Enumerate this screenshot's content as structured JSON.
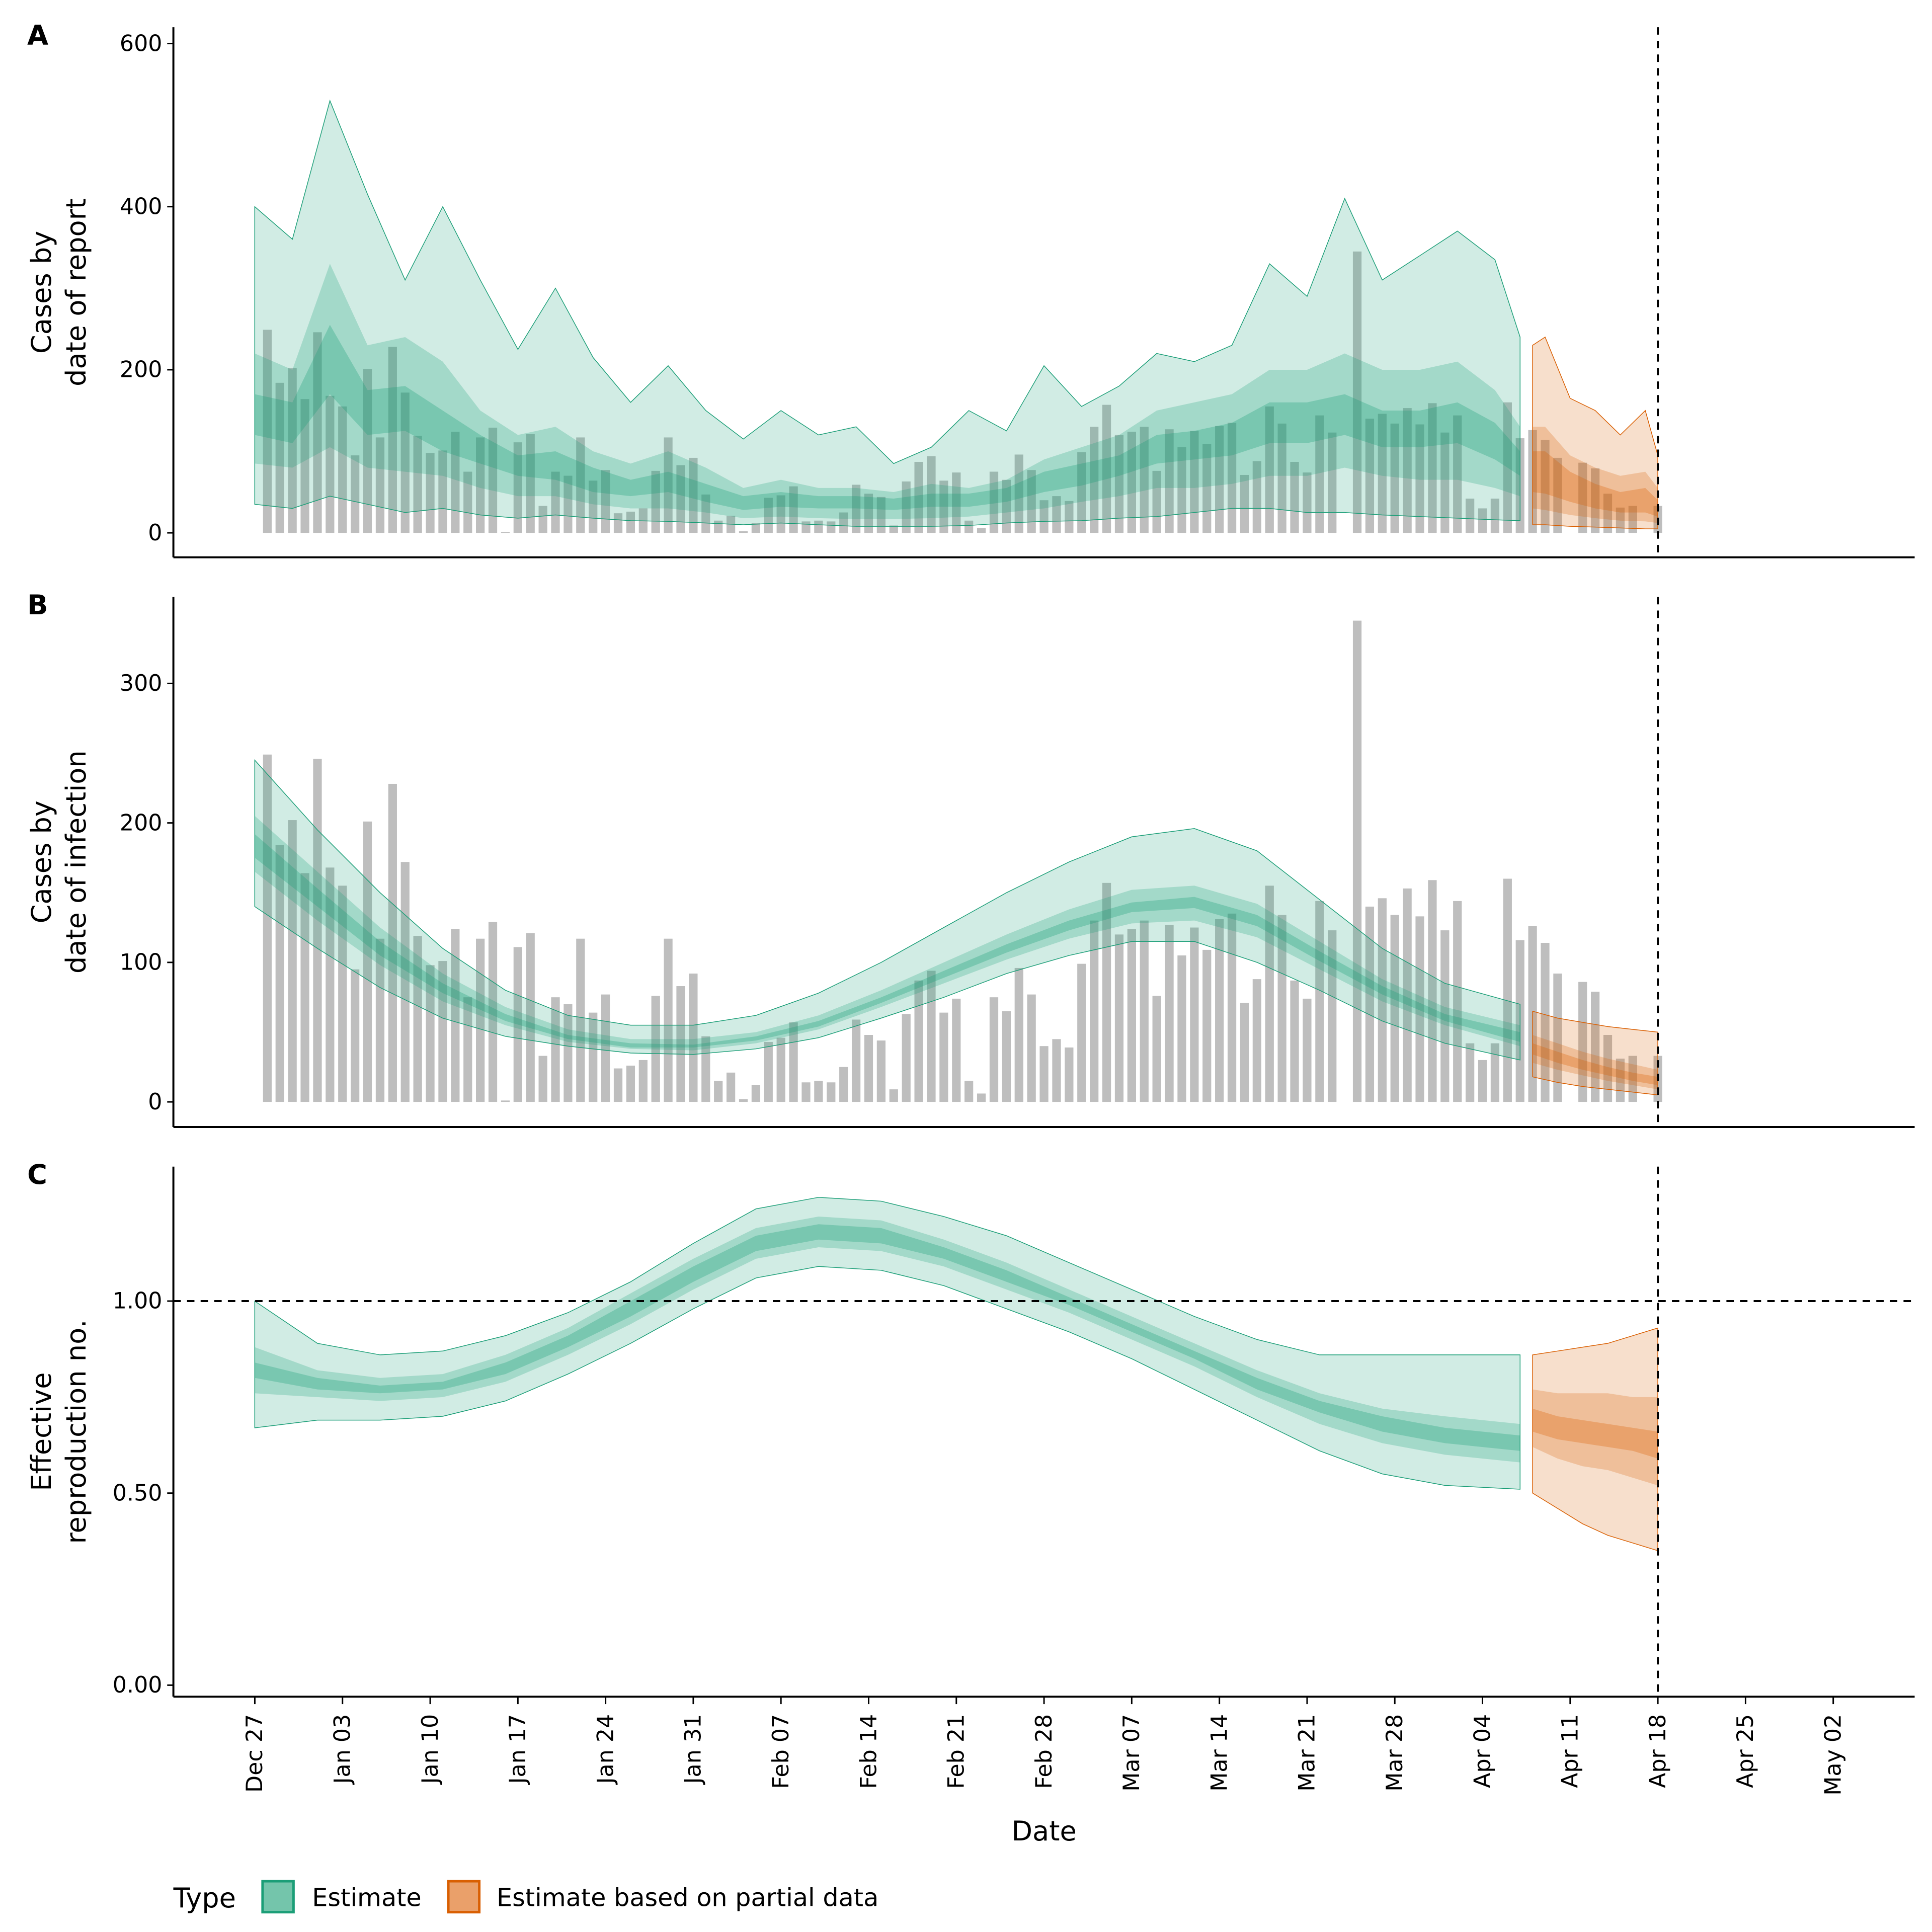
{
  "chart_data": {
    "type": "area",
    "start_date": "Dec 27",
    "x_axis": {
      "label": "Date",
      "ticks": [
        "Dec 27",
        "Jan 03",
        "Jan 10",
        "Jan 17",
        "Jan 24",
        "Jan 31",
        "Feb 07",
        "Feb 14",
        "Feb 21",
        "Feb 28",
        "Mar 07",
        "Mar 14",
        "Mar 21",
        "Mar 28",
        "Apr 04",
        "Apr 11",
        "Apr 18",
        "Apr 25",
        "May 02"
      ],
      "range_days": [
        -6.5,
        132.5
      ]
    },
    "forecast_date_day": 112,
    "estimate_end_day": 101,
    "partial_start_day": 102,
    "reported_cases": {
      "first_day": 1,
      "values": [
        249,
        184,
        202,
        164,
        246,
        168,
        155,
        95,
        201,
        117,
        228,
        172,
        119,
        98,
        101,
        124,
        75,
        117,
        129,
        1,
        111,
        121,
        33,
        75,
        70,
        117,
        64,
        77,
        24,
        26,
        30,
        76,
        117,
        83,
        92,
        47,
        15,
        21,
        2,
        12,
        43,
        46,
        57,
        14,
        15,
        14,
        25,
        59,
        48,
        44,
        9,
        63,
        87,
        94,
        64,
        74,
        15,
        6,
        75,
        65,
        96,
        77,
        40,
        45,
        39,
        99,
        130,
        157,
        120,
        124,
        130,
        76,
        127,
        105,
        125,
        109,
        131,
        135,
        71,
        88,
        155,
        134,
        87,
        74,
        144,
        123,
        null,
        345,
        140,
        146,
        134,
        153,
        133,
        159,
        123,
        144,
        42,
        30,
        42,
        160,
        116,
        126,
        114,
        92,
        null,
        86,
        79,
        48,
        31,
        33,
        null,
        33
      ]
    },
    "panels": [
      {
        "id": "A",
        "ylabel": [
          "Cases by",
          "date of report"
        ],
        "ylim": [
          -30,
          620
        ],
        "yticks": [
          0,
          200,
          400,
          600
        ],
        "ytick_labels": [
          "0",
          "200",
          "400",
          "600"
        ],
        "estimate": {
          "days": [
            0,
            3,
            6,
            9,
            12,
            15,
            18,
            21,
            24,
            27,
            30,
            33,
            36,
            39,
            42,
            45,
            48,
            51,
            54,
            57,
            60,
            63,
            66,
            69,
            72,
            75,
            78,
            81,
            84,
            87,
            90,
            93,
            96,
            99,
            101
          ],
          "outer_hi": [
            400,
            360,
            530,
            415,
            310,
            400,
            310,
            225,
            300,
            215,
            160,
            205,
            150,
            115,
            150,
            120,
            130,
            85,
            105,
            150,
            125,
            205,
            155,
            180,
            220,
            210,
            230,
            330,
            290,
            410,
            310,
            340,
            370,
            335,
            240
          ],
          "outer_lo": [
            35,
            30,
            45,
            35,
            25,
            30,
            22,
            18,
            22,
            18,
            15,
            14,
            12,
            10,
            12,
            10,
            8,
            8,
            8,
            9,
            12,
            14,
            15,
            18,
            20,
            25,
            30,
            30,
            25,
            25,
            22,
            20,
            18,
            16,
            15
          ],
          "mid_hi": [
            220,
            200,
            330,
            230,
            240,
            210,
            150,
            120,
            130,
            100,
            85,
            100,
            80,
            55,
            65,
            55,
            55,
            50,
            60,
            55,
            65,
            90,
            105,
            120,
            150,
            160,
            170,
            200,
            200,
            220,
            200,
            200,
            210,
            175,
            130
          ],
          "mid_lo": [
            85,
            80,
            105,
            80,
            75,
            70,
            55,
            45,
            45,
            35,
            30,
            30,
            25,
            18,
            20,
            18,
            17,
            17,
            18,
            20,
            25,
            30,
            38,
            45,
            55,
            55,
            60,
            70,
            70,
            80,
            70,
            65,
            65,
            55,
            45
          ],
          "inner_hi": [
            170,
            160,
            255,
            175,
            180,
            150,
            120,
            95,
            100,
            80,
            65,
            75,
            60,
            45,
            50,
            45,
            45,
            42,
            48,
            48,
            55,
            75,
            85,
            95,
            120,
            125,
            135,
            160,
            160,
            170,
            150,
            150,
            160,
            135,
            100
          ],
          "inner_lo": [
            120,
            110,
            170,
            120,
            125,
            100,
            85,
            70,
            65,
            50,
            45,
            50,
            38,
            28,
            32,
            30,
            30,
            28,
            32,
            32,
            38,
            50,
            58,
            70,
            85,
            90,
            95,
            110,
            110,
            120,
            105,
            105,
            110,
            90,
            70
          ]
        },
        "partial": {
          "days": [
            102,
            103,
            105,
            107,
            109,
            111,
            112
          ],
          "outer_hi": [
            230,
            240,
            165,
            150,
            120,
            150,
            95
          ],
          "outer_lo": [
            10,
            10,
            8,
            7,
            6,
            5,
            5
          ],
          "mid_hi": [
            130,
            130,
            95,
            80,
            70,
            75,
            55
          ],
          "mid_lo": [
            30,
            28,
            22,
            18,
            15,
            14,
            12
          ],
          "inner_hi": [
            100,
            100,
            75,
            60,
            50,
            55,
            40
          ],
          "inner_lo": [
            50,
            48,
            38,
            30,
            25,
            25,
            20
          ]
        }
      },
      {
        "id": "B",
        "ylabel": [
          "Cases by",
          "date of infection"
        ],
        "ylim": [
          -18,
          362
        ],
        "yticks": [
          0,
          100,
          200,
          300
        ],
        "ytick_labels": [
          "0",
          "100",
          "200",
          "300"
        ],
        "estimate": {
          "days": [
            0,
            5,
            10,
            15,
            20,
            25,
            30,
            35,
            40,
            45,
            50,
            55,
            60,
            65,
            70,
            75,
            80,
            85,
            90,
            95,
            101
          ],
          "outer_hi": [
            245,
            195,
            150,
            110,
            80,
            62,
            55,
            55,
            62,
            78,
            100,
            125,
            150,
            172,
            190,
            196,
            180,
            145,
            110,
            85,
            70
          ],
          "outer_lo": [
            140,
            110,
            82,
            60,
            47,
            40,
            35,
            34,
            38,
            46,
            60,
            75,
            92,
            105,
            115,
            115,
            100,
            80,
            58,
            42,
            30
          ],
          "mid_hi": [
            205,
            165,
            125,
            92,
            68,
            52,
            45,
            45,
            50,
            62,
            80,
            100,
            120,
            138,
            152,
            155,
            142,
            115,
            88,
            68,
            55
          ],
          "mid_lo": [
            165,
            130,
            98,
            72,
            55,
            43,
            38,
            37,
            42,
            52,
            68,
            85,
            102,
            117,
            128,
            130,
            118,
            95,
            72,
            55,
            40
          ],
          "inner_hi": [
            192,
            153,
            115,
            85,
            63,
            48,
            42,
            41,
            47,
            58,
            75,
            94,
            113,
            130,
            143,
            147,
            134,
            108,
            83,
            63,
            50
          ],
          "inner_lo": [
            175,
            140,
            105,
            78,
            58,
            45,
            39,
            39,
            44,
            54,
            71,
            89,
            107,
            123,
            136,
            139,
            126,
            101,
            77,
            58,
            43
          ]
        },
        "partial": {
          "days": [
            102,
            104,
            106,
            108,
            110,
            112
          ],
          "outer_hi": [
            65,
            60,
            57,
            54,
            52,
            50
          ],
          "outer_lo": [
            18,
            14,
            11,
            9,
            7,
            5
          ],
          "mid_hi": [
            48,
            42,
            36,
            31,
            27,
            23
          ],
          "mid_lo": [
            28,
            23,
            19,
            15,
            12,
            9
          ],
          "inner_hi": [
            42,
            36,
            30,
            25,
            21,
            18
          ],
          "inner_lo": [
            34,
            28,
            23,
            19,
            15,
            12
          ]
        }
      },
      {
        "id": "C",
        "ylabel": [
          "Effective",
          "reproduction no."
        ],
        "ylim": [
          -0.03,
          1.35
        ],
        "yticks": [
          0,
          0.5,
          1.0
        ],
        "ytick_labels": [
          "0.00",
          "0.50",
          "1.00"
        ],
        "hline": 1.0,
        "estimate": {
          "days": [
            0,
            5,
            10,
            15,
            20,
            25,
            30,
            35,
            40,
            45,
            50,
            55,
            60,
            65,
            70,
            75,
            80,
            85,
            90,
            95,
            101
          ],
          "outer_hi": [
            1.0,
            0.89,
            0.86,
            0.87,
            0.91,
            0.97,
            1.05,
            1.15,
            1.24,
            1.27,
            1.26,
            1.22,
            1.17,
            1.1,
            1.03,
            0.96,
            0.9,
            0.86,
            0.86,
            0.86,
            0.86
          ],
          "outer_lo": [
            0.67,
            0.69,
            0.69,
            0.7,
            0.74,
            0.81,
            0.89,
            0.98,
            1.06,
            1.09,
            1.08,
            1.04,
            0.98,
            0.92,
            0.85,
            0.77,
            0.69,
            0.61,
            0.55,
            0.52,
            0.51
          ],
          "mid_hi": [
            0.88,
            0.82,
            0.8,
            0.81,
            0.86,
            0.93,
            1.02,
            1.11,
            1.19,
            1.22,
            1.21,
            1.16,
            1.1,
            1.03,
            0.96,
            0.89,
            0.82,
            0.76,
            0.72,
            0.7,
            0.68
          ],
          "mid_lo": [
            0.76,
            0.75,
            0.74,
            0.75,
            0.79,
            0.86,
            0.94,
            1.03,
            1.11,
            1.14,
            1.13,
            1.09,
            1.03,
            0.97,
            0.9,
            0.83,
            0.75,
            0.68,
            0.63,
            0.6,
            0.58
          ],
          "inner_hi": [
            0.84,
            0.8,
            0.78,
            0.79,
            0.84,
            0.91,
            1.0,
            1.09,
            1.17,
            1.2,
            1.19,
            1.14,
            1.08,
            1.01,
            0.94,
            0.87,
            0.8,
            0.74,
            0.7,
            0.67,
            0.65
          ],
          "inner_lo": [
            0.8,
            0.77,
            0.76,
            0.77,
            0.81,
            0.88,
            0.96,
            1.05,
            1.13,
            1.16,
            1.15,
            1.11,
            1.05,
            0.99,
            0.92,
            0.85,
            0.77,
            0.71,
            0.66,
            0.63,
            0.61
          ]
        },
        "partial": {
          "days": [
            102,
            104,
            106,
            108,
            110,
            112
          ],
          "outer_hi": [
            0.86,
            0.87,
            0.88,
            0.89,
            0.91,
            0.93
          ],
          "outer_lo": [
            0.5,
            0.46,
            0.42,
            0.39,
            0.37,
            0.35
          ],
          "mid_hi": [
            0.77,
            0.76,
            0.76,
            0.76,
            0.75,
            0.75
          ],
          "mid_lo": [
            0.62,
            0.59,
            0.57,
            0.56,
            0.54,
            0.52
          ],
          "inner_hi": [
            0.72,
            0.7,
            0.69,
            0.68,
            0.67,
            0.66
          ],
          "inner_lo": [
            0.66,
            0.64,
            0.63,
            0.62,
            0.61,
            0.59
          ]
        }
      }
    ],
    "legend": {
      "title": "Type",
      "position": "bottom-left",
      "entries": [
        {
          "label": "Estimate",
          "fill": "#74c5ab",
          "stroke": "#1b9e77"
        },
        {
          "label": "Estimate based on partial data",
          "fill": "#eaa06a",
          "stroke": "#d95f02"
        }
      ]
    },
    "colors": {
      "estimate": "#1b9e77",
      "partial": "#d95f02",
      "bars": "#a0a0a0"
    }
  }
}
